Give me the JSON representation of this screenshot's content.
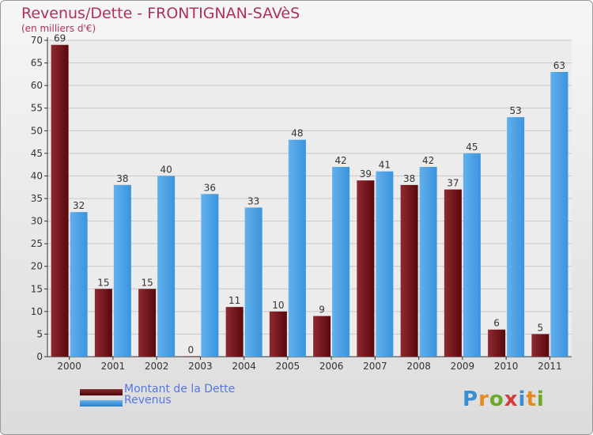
{
  "title": "Revenus/Dette - FRONTIGNAN-SAVèS",
  "subtitle": "(en milliers d'€)",
  "logo": {
    "text": "Proxiti"
  },
  "colors": {
    "dette": "#6e1218",
    "revenus": "#3b96e0",
    "axis": "#333333",
    "grid": "#c8c8c8"
  },
  "chart_data": {
    "type": "bar",
    "title": "Revenus/Dette - FRONTIGNAN-SAVèS",
    "ylabel": "(en milliers d'€)",
    "ylim": [
      0,
      70
    ],
    "yticks": [
      0,
      5,
      10,
      15,
      20,
      25,
      30,
      35,
      40,
      45,
      50,
      55,
      60,
      65,
      70
    ],
    "grid": true,
    "legend_position": "bottom-left",
    "categories": [
      "2000",
      "2001",
      "2002",
      "2003",
      "2004",
      "2005",
      "2006",
      "2007",
      "2008",
      "2009",
      "2010",
      "2011"
    ],
    "series": [
      {
        "name": "Montant de la Dette",
        "values": [
          69,
          15,
          15,
          0,
          11,
          10,
          9,
          39,
          38,
          37,
          6,
          5
        ]
      },
      {
        "name": "Revenus",
        "values": [
          32,
          38,
          40,
          36,
          33,
          48,
          42,
          41,
          42,
          45,
          53,
          63
        ]
      }
    ]
  }
}
